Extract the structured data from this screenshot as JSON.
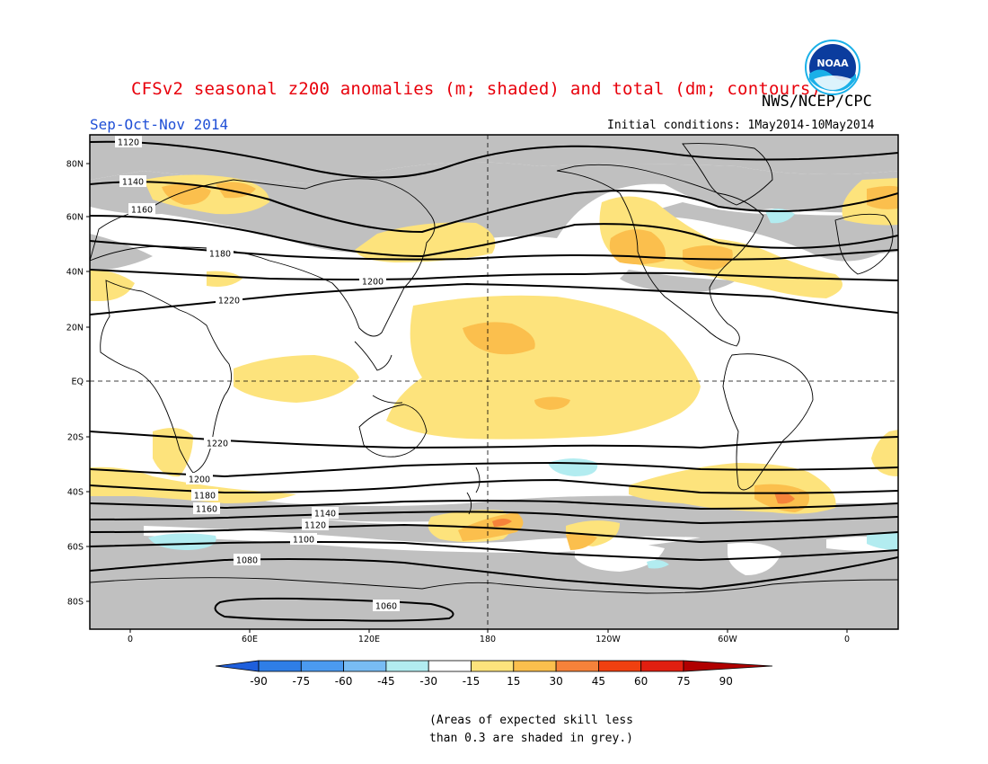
{
  "header": {
    "title": "CFSv2 seasonal z200 anomalies (m; shaded) and total (dm; contours)",
    "organization": "NWS/NCEP/CPC",
    "season": "Sep-Oct-Nov 2014",
    "initial_conditions": "Initial conditions: 1May2014-10May2014",
    "logo_text": "NOAA"
  },
  "map": {
    "lat_labels": [
      "80N",
      "60N",
      "40N",
      "20N",
      "EQ",
      "20S",
      "40S",
      "60S",
      "80S"
    ],
    "lon_labels": [
      "0",
      "60E",
      "120E",
      "180",
      "120W",
      "60W",
      "0"
    ],
    "contours": [
      {
        "label": "1120"
      },
      {
        "label": "1140"
      },
      {
        "label": "1160"
      },
      {
        "label": "1180"
      },
      {
        "label": "1200"
      },
      {
        "label": "1220"
      },
      {
        "label": "1220"
      },
      {
        "label": "1200"
      },
      {
        "label": "1180"
      },
      {
        "label": "1160"
      },
      {
        "label": "1140"
      },
      {
        "label": "1120"
      },
      {
        "label": "1100"
      },
      {
        "label": "1080"
      },
      {
        "label": "1060"
      }
    ],
    "colors": {
      "low_skill_grey": "#c0c0c0",
      "pos_15_30": "#fde37c",
      "pos_30_45": "#fbbf4d",
      "pos_45_60": "#f6823a",
      "neg_15_30": "#b2ecf0"
    }
  },
  "colorbar": {
    "ticks": [
      "-90",
      "-75",
      "-60",
      "-45",
      "-30",
      "-15",
      "15",
      "30",
      "45",
      "60",
      "75",
      "90"
    ],
    "colors": [
      "#1f5fdc",
      "#2f7ee6",
      "#4b9af0",
      "#78bcf4",
      "#b2ecf0",
      "#ffffff",
      "#fde37c",
      "#fbbf4d",
      "#f6823a",
      "#f04010",
      "#e11f10",
      "#b00000"
    ]
  },
  "footnote": {
    "line1": "(Areas of expected skill less",
    "line2": "than 0.3 are shaded in grey.)"
  }
}
